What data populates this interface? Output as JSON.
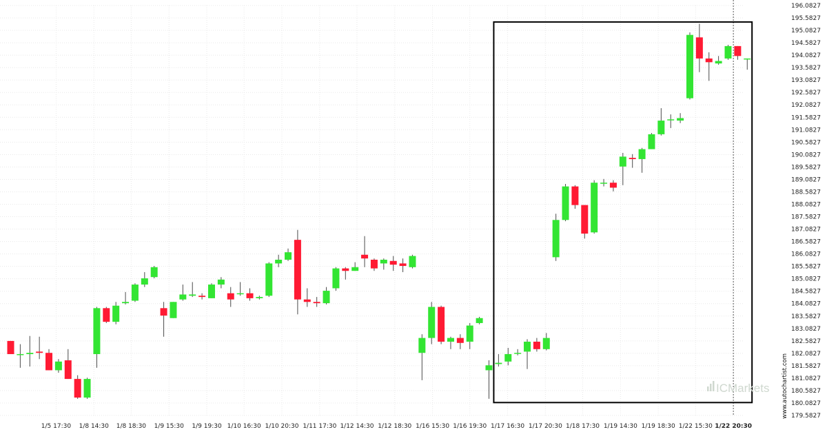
{
  "watermark": "www.autochartist.com",
  "logo": "ICMarkets",
  "colors": {
    "up": "#33e533",
    "down": "#ff1a33",
    "wick": "#4a4a4a",
    "box": "#000000",
    "grid": "#e8e8e8",
    "current_line": "#555555"
  },
  "chart_data": {
    "type": "candlestick",
    "ylim": [
      179.5827,
      196.0827
    ],
    "y_ticks": [
      196.0827,
      195.5827,
      195.0827,
      194.5827,
      194.0827,
      193.5827,
      193.0827,
      192.5827,
      192.0827,
      191.5827,
      191.0827,
      190.5827,
      190.0827,
      189.5827,
      189.0827,
      188.5827,
      188.0827,
      187.5827,
      187.0827,
      186.5827,
      186.0827,
      185.5827,
      185.0827,
      184.5827,
      184.0827,
      183.5827,
      183.0827,
      182.5827,
      182.0827,
      181.5827,
      181.0827,
      180.5827,
      180.0827,
      179.5827
    ],
    "y_tick_labels": [
      "196.0827",
      "195.5827",
      "195.0827",
      "194.5827",
      "194.0827",
      "193.5827",
      "193.0827",
      "192.5827",
      "192.0827",
      "191.5827",
      "191.0827",
      "190.5827",
      "190.0827",
      "189.5827",
      "189.0827",
      "188.5827",
      "188.0827",
      "187.5827",
      "187.0827",
      "186.5827",
      "186.0827",
      "185.5827",
      "185.0827",
      "184.5827",
      "184.0827",
      "183.5827",
      "183.0827",
      "182.5827",
      "182.0827",
      "181.5827",
      "181.0827",
      "180.5827",
      "180.0827",
      "179.5827"
    ],
    "x_ticks": [
      {
        "label": "1/5 17:30",
        "index": 4.75
      },
      {
        "label": "1/8 14:30",
        "index": 8.7
      },
      {
        "label": "1/8 18:30",
        "index": 12.6
      },
      {
        "label": "1/9 15:30",
        "index": 16.55
      },
      {
        "label": "1/9 19:30",
        "index": 20.5
      },
      {
        "label": "1/10 16:30",
        "index": 24.4
      },
      {
        "label": "1/10 20:30",
        "index": 28.35
      },
      {
        "label": "1/11 17:30",
        "index": 32.3
      },
      {
        "label": "1/12 14:30",
        "index": 36.2
      },
      {
        "label": "1/12 18:30",
        "index": 40.15
      },
      {
        "label": "1/16 15:30",
        "index": 44.1
      },
      {
        "label": "1/16 19:30",
        "index": 48.0
      },
      {
        "label": "1/17 16:30",
        "index": 51.95
      },
      {
        "label": "1/17 20:30",
        "index": 55.9
      },
      {
        "label": "1/18 17:30",
        "index": 59.8
      },
      {
        "label": "1/19 14:30",
        "index": 63.75
      },
      {
        "label": "1/19 18:30",
        "index": 67.7
      },
      {
        "label": "1/22 15:30",
        "index": 71.6
      },
      {
        "label": "1/22 20:30",
        "index": 75.55,
        "bold": true
      }
    ],
    "candles": [
      {
        "o": 182.58,
        "h": 182.58,
        "l": 182.05,
        "c": 182.05
      },
      {
        "o": 182.05,
        "h": 182.45,
        "l": 181.5,
        "c": 182.05
      },
      {
        "o": 182.05,
        "h": 182.78,
        "l": 181.55,
        "c": 182.1
      },
      {
        "o": 182.15,
        "h": 182.75,
        "l": 181.85,
        "c": 182.1
      },
      {
        "o": 182.1,
        "h": 182.25,
        "l": 181.4,
        "c": 181.4
      },
      {
        "o": 181.4,
        "h": 181.85,
        "l": 181.3,
        "c": 181.75
      },
      {
        "o": 181.8,
        "h": 182.25,
        "l": 181.05,
        "c": 181.05
      },
      {
        "o": 181.05,
        "h": 181.2,
        "l": 180.25,
        "c": 180.3
      },
      {
        "o": 180.3,
        "h": 181.1,
        "l": 180.25,
        "c": 181.05
      },
      {
        "o": 182.05,
        "h": 183.95,
        "l": 181.5,
        "c": 183.9
      },
      {
        "o": 183.9,
        "h": 183.95,
        "l": 183.3,
        "c": 183.35
      },
      {
        "o": 183.35,
        "h": 184.15,
        "l": 183.25,
        "c": 184.0
      },
      {
        "o": 184.1,
        "h": 184.55,
        "l": 184.05,
        "c": 184.15
      },
      {
        "o": 184.2,
        "h": 184.9,
        "l": 184.15,
        "c": 184.85
      },
      {
        "o": 184.85,
        "h": 185.35,
        "l": 184.75,
        "c": 185.1
      },
      {
        "o": 185.15,
        "h": 185.6,
        "l": 185.1,
        "c": 185.55
      },
      {
        "o": 183.9,
        "h": 184.15,
        "l": 182.75,
        "c": 183.6
      },
      {
        "o": 183.5,
        "h": 184.15,
        "l": 183.5,
        "c": 184.15
      },
      {
        "o": 184.25,
        "h": 184.85,
        "l": 184.2,
        "c": 184.45
      },
      {
        "o": 184.4,
        "h": 184.95,
        "l": 184.35,
        "c": 184.45
      },
      {
        "o": 184.4,
        "h": 184.5,
        "l": 184.25,
        "c": 184.35
      },
      {
        "o": 184.3,
        "h": 184.9,
        "l": 184.3,
        "c": 184.85
      },
      {
        "o": 184.85,
        "h": 185.15,
        "l": 184.7,
        "c": 185.05
      },
      {
        "o": 184.5,
        "h": 184.75,
        "l": 183.95,
        "c": 184.25
      },
      {
        "o": 184.5,
        "h": 184.95,
        "l": 184.4,
        "c": 184.5
      },
      {
        "o": 184.5,
        "h": 184.7,
        "l": 184.2,
        "c": 184.3
      },
      {
        "o": 184.3,
        "h": 184.4,
        "l": 184.25,
        "c": 184.35
      },
      {
        "o": 184.4,
        "h": 185.75,
        "l": 184.35,
        "c": 185.7
      },
      {
        "o": 185.7,
        "h": 186.05,
        "l": 185.55,
        "c": 185.85
      },
      {
        "o": 185.85,
        "h": 186.3,
        "l": 185.8,
        "c": 186.15
      },
      {
        "o": 186.65,
        "h": 187.05,
        "l": 183.65,
        "c": 184.25
      },
      {
        "o": 184.25,
        "h": 184.7,
        "l": 183.95,
        "c": 184.15
      },
      {
        "o": 184.15,
        "h": 184.35,
        "l": 183.95,
        "c": 184.1
      },
      {
        "o": 184.1,
        "h": 184.75,
        "l": 184.05,
        "c": 184.6
      },
      {
        "o": 184.7,
        "h": 185.55,
        "l": 184.6,
        "c": 185.5
      },
      {
        "o": 185.5,
        "h": 185.55,
        "l": 185.05,
        "c": 185.4
      },
      {
        "o": 185.4,
        "h": 185.75,
        "l": 185.4,
        "c": 185.55
      },
      {
        "o": 186.05,
        "h": 186.8,
        "l": 185.55,
        "c": 185.9
      },
      {
        "o": 185.85,
        "h": 185.9,
        "l": 185.4,
        "c": 185.5
      },
      {
        "o": 185.7,
        "h": 185.9,
        "l": 185.45,
        "c": 185.85
      },
      {
        "o": 185.8,
        "h": 186.0,
        "l": 185.4,
        "c": 185.65
      },
      {
        "o": 185.7,
        "h": 185.9,
        "l": 185.35,
        "c": 185.6
      },
      {
        "o": 185.55,
        "h": 186.05,
        "l": 185.5,
        "c": 186.0
      },
      {
        "o": 182.1,
        "h": 182.85,
        "l": 181.0,
        "c": 182.7
      },
      {
        "o": 182.7,
        "h": 184.15,
        "l": 182.45,
        "c": 183.95
      },
      {
        "o": 183.95,
        "h": 184.0,
        "l": 182.45,
        "c": 182.55
      },
      {
        "o": 182.55,
        "h": 182.75,
        "l": 182.25,
        "c": 182.7
      },
      {
        "o": 182.7,
        "h": 182.85,
        "l": 182.25,
        "c": 182.5
      },
      {
        "o": 182.55,
        "h": 183.3,
        "l": 182.25,
        "c": 183.2
      },
      {
        "o": 183.3,
        "h": 183.55,
        "l": 183.25,
        "c": 183.5
      },
      {
        "o": 181.4,
        "h": 181.8,
        "l": 180.25,
        "c": 181.6
      },
      {
        "o": 181.65,
        "h": 182.05,
        "l": 181.55,
        "c": 181.7
      },
      {
        "o": 181.75,
        "h": 182.3,
        "l": 181.6,
        "c": 182.05
      },
      {
        "o": 182.1,
        "h": 182.25,
        "l": 182.0,
        "c": 182.1
      },
      {
        "o": 182.15,
        "h": 182.65,
        "l": 181.45,
        "c": 182.55
      },
      {
        "o": 182.55,
        "h": 182.7,
        "l": 182.15,
        "c": 182.25
      },
      {
        "o": 182.25,
        "h": 182.9,
        "l": 182.2,
        "c": 182.7
      },
      {
        "o": 185.95,
        "h": 187.7,
        "l": 185.8,
        "c": 187.45
      },
      {
        "o": 187.45,
        "h": 188.9,
        "l": 187.4,
        "c": 188.8
      },
      {
        "o": 188.8,
        "h": 188.85,
        "l": 187.9,
        "c": 188.05
      },
      {
        "o": 188.05,
        "h": 188.05,
        "l": 186.7,
        "c": 186.9
      },
      {
        "o": 186.95,
        "h": 189.05,
        "l": 186.9,
        "c": 188.95
      },
      {
        "o": 188.95,
        "h": 189.1,
        "l": 188.8,
        "c": 188.95
      },
      {
        "o": 188.95,
        "h": 189.05,
        "l": 188.6,
        "c": 188.75
      },
      {
        "o": 189.6,
        "h": 190.15,
        "l": 188.85,
        "c": 190.0
      },
      {
        "o": 189.95,
        "h": 190.1,
        "l": 189.55,
        "c": 189.9
      },
      {
        "o": 189.9,
        "h": 190.35,
        "l": 189.35,
        "c": 190.3
      },
      {
        "o": 190.3,
        "h": 190.95,
        "l": 190.3,
        "c": 190.9
      },
      {
        "o": 190.9,
        "h": 191.95,
        "l": 190.85,
        "c": 191.45
      },
      {
        "o": 191.5,
        "h": 191.7,
        "l": 191.15,
        "c": 191.5
      },
      {
        "o": 191.45,
        "h": 191.75,
        "l": 191.35,
        "c": 191.55
      },
      {
        "o": 192.35,
        "h": 195.0,
        "l": 192.3,
        "c": 194.9
      },
      {
        "o": 194.8,
        "h": 195.35,
        "l": 193.4,
        "c": 193.95
      },
      {
        "o": 193.95,
        "h": 194.2,
        "l": 193.05,
        "c": 193.8
      },
      {
        "o": 193.75,
        "h": 194.05,
        "l": 193.7,
        "c": 193.85
      },
      {
        "o": 193.95,
        "h": 194.5,
        "l": 193.9,
        "c": 194.45
      },
      {
        "o": 194.45,
        "h": 194.45,
        "l": 193.9,
        "c": 194.05
      },
      {
        "o": 193.95,
        "h": 193.95,
        "l": 193.5,
        "c": 193.95
      }
    ],
    "highlight_box": {
      "x_start": 50.5,
      "x_end": 77.5,
      "y_top": 195.42,
      "y_bottom": 180.1
    },
    "current_marker_index": 75.55
  }
}
